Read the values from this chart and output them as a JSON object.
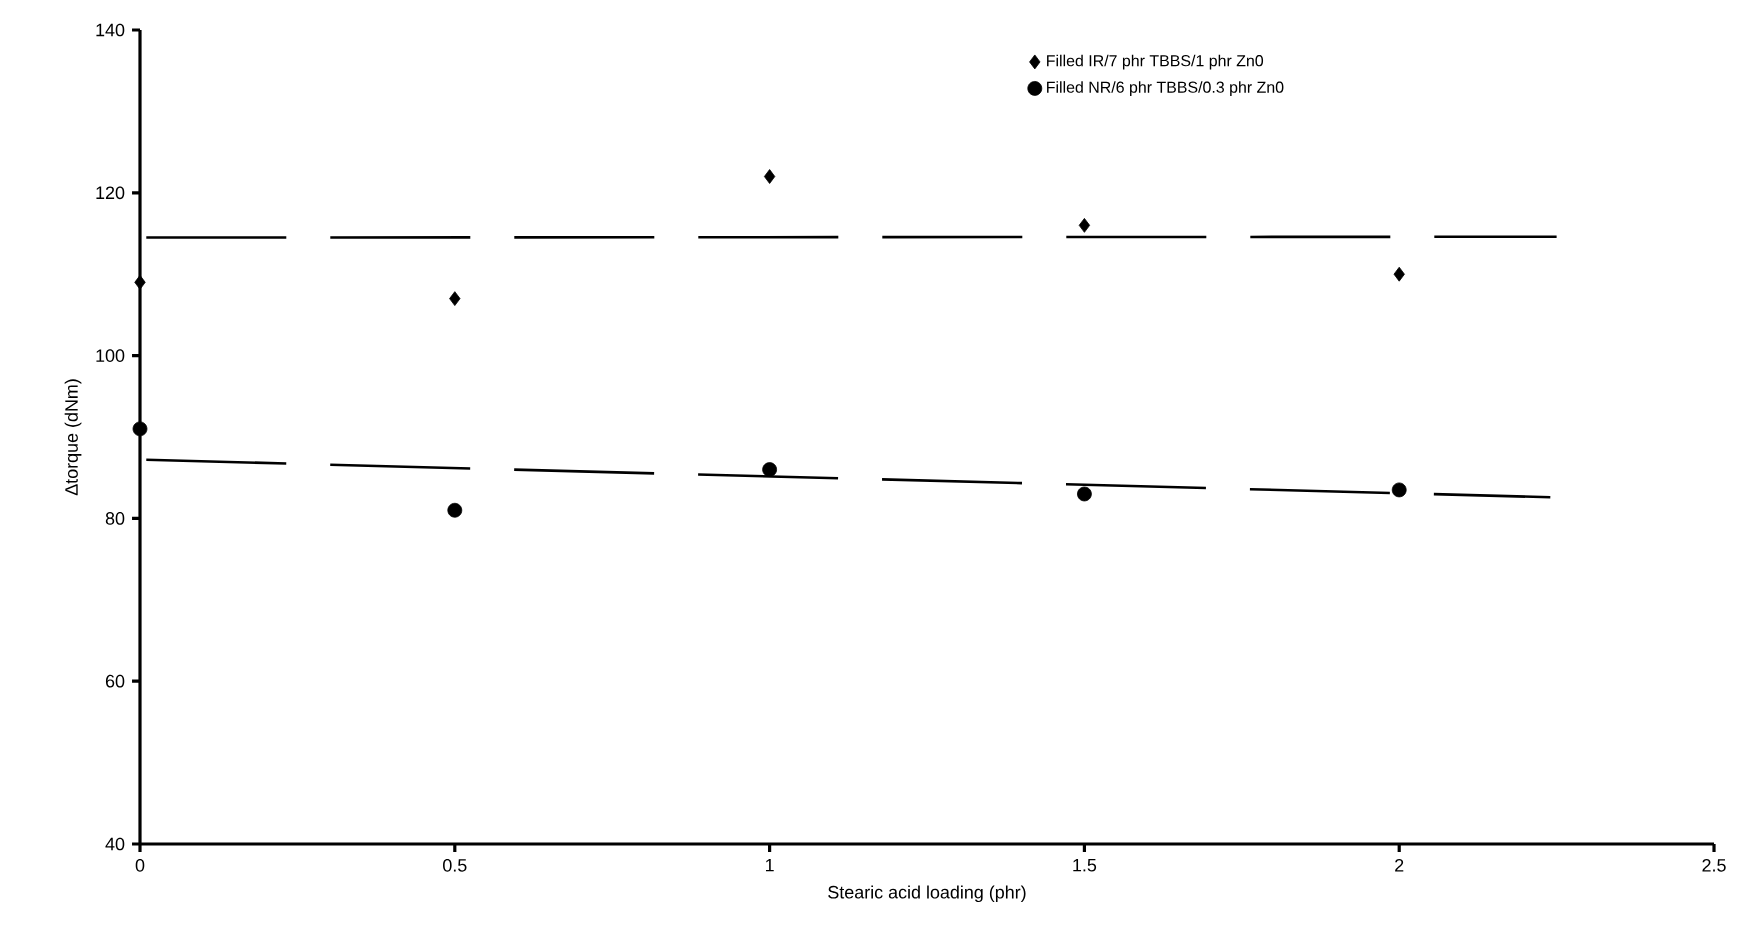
{
  "chart_data": {
    "type": "scatter",
    "xlabel": "Stearic acid loading (phr)",
    "ylabel": "Δtorque (dNm)",
    "xlim": [
      0,
      2.5
    ],
    "ylim": [
      40,
      140
    ],
    "xticks": [
      0,
      0.5,
      1,
      1.5,
      2,
      2.5
    ],
    "yticks": [
      40,
      60,
      80,
      100,
      120,
      140
    ],
    "legend": "top",
    "grid": false,
    "series": [
      {
        "name": "Filled IR/7 phr TBBS/1 phr Zn0",
        "color": "#000000",
        "marker": "diamond",
        "x": [
          0,
          0.5,
          1,
          1.5,
          2
        ],
        "values": [
          109,
          107,
          122,
          116,
          110
        ]
      },
      {
        "name": "Filled NR/6 phr TBBS/0.3 phr Zn0",
        "color": "#000000",
        "marker": "circle",
        "x": [
          0,
          0.5,
          1,
          1.5,
          2
        ],
        "values": [
          91,
          81,
          86,
          83,
          83.5
        ]
      },
      {
        "type": "line",
        "color": "#000000",
        "line_style": "dashed",
        "marker": "none",
        "x": [
          0.01,
          2.25
        ],
        "values": [
          114.5,
          114.6
        ]
      },
      {
        "type": "line",
        "color": "#000000",
        "line_style": "dashed",
        "marker": "none",
        "x": [
          0.01,
          2.24
        ],
        "values": [
          87.2,
          82.6
        ]
      }
    ]
  }
}
